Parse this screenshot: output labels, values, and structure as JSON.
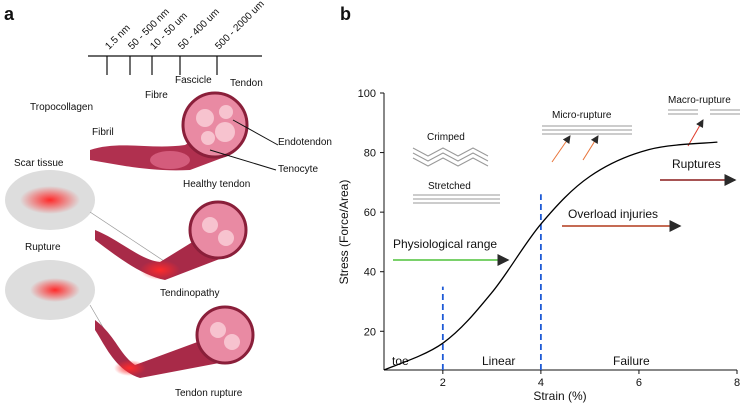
{
  "panel_a": {
    "label": "a",
    "scale_labels": [
      "1.5 nm",
      "50 - 500 nm",
      "10 - 50 um",
      "50 - 400 um",
      "500 - 2000 um"
    ],
    "levels": [
      "Tropocollagen",
      "Fibril",
      "Fibre",
      "Fascicle",
      "Tendon"
    ],
    "parts": [
      "Endotendon",
      "Tenocyte"
    ],
    "states": [
      "Healthy tendon",
      "Scar tissue",
      "Tendinopathy",
      "Rupture",
      "Tendon rupture"
    ]
  },
  "chart_data": {
    "type": "line",
    "panel_label": "b",
    "x_label": "Strain (%)",
    "y_label": "Stress (Force/Area)",
    "xlim": [
      0.8,
      8
    ],
    "ylim": [
      7,
      100
    ],
    "xticks": [
      2,
      4,
      6,
      8
    ],
    "yticks": [
      20,
      40,
      60,
      80,
      100
    ],
    "series": [
      {
        "color": "#000000",
        "x": [
          0.8,
          2,
          3,
          4,
          5,
          6.2,
          7.6
        ],
        "values": [
          7,
          16,
          33,
          56,
          72,
          81,
          83.5
        ]
      }
    ],
    "reference_lines": [
      {
        "x": 2,
        "top": 35,
        "color": "#1f5bd6"
      },
      {
        "x": 4,
        "top": 66,
        "color": "#1f5bd6"
      }
    ],
    "regions": [
      "toe",
      "Linear",
      "Failure"
    ],
    "annotations": [
      "Physiological range",
      "Overload injuries",
      "Ruptures",
      "Micro-rupture",
      "Macro-rupture",
      "Crimped",
      "Stretched"
    ]
  }
}
